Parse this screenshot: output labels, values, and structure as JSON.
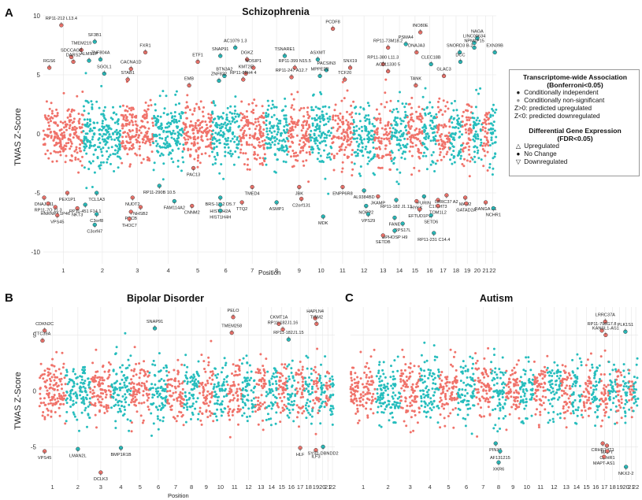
{
  "colors": {
    "coral": "#f0726a",
    "teal": "#26bdbd",
    "grid": "#e6e6e6"
  },
  "panels": [
    {
      "id": "A",
      "letter": "A",
      "title": "Schizophrenia",
      "ylabel": "TWAS Z-Score",
      "xlabel": "Position",
      "yticks": [
        "10",
        "5",
        "0",
        "-5",
        "-10"
      ],
      "chromosomes": [
        "1",
        "2",
        "3",
        "4",
        "5",
        "6",
        "7",
        "8",
        "9",
        "10",
        "11",
        "12",
        "13",
        "14",
        "15",
        "16",
        "17",
        "18",
        "19",
        "20",
        "21",
        "22"
      ],
      "genes": [
        {
          "label": "RP11-212 L13.4",
          "chr": 1,
          "f": 0.45,
          "z": 9.2
        },
        {
          "label": "TMEM219",
          "chr": 1,
          "f": 0.95,
          "z": 7.1
        },
        {
          "label": "SDCCAG8",
          "chr": 1,
          "f": 0.7,
          "z": 6.5
        },
        {
          "label": "DARS2",
          "chr": 1,
          "f": 0.75,
          "z": 6.1
        },
        {
          "label": "ALMS1P",
          "chr": 2,
          "f": 0.15,
          "z": 6.2
        },
        {
          "label": "SF3B1",
          "chr": 2,
          "f": 0.3,
          "z": 7.8
        },
        {
          "label": "ZNF804A",
          "chr": 2,
          "f": 0.45,
          "z": 6.3
        },
        {
          "label": "CACNA1D",
          "chr": 3,
          "f": 0.3,
          "z": 5.5
        },
        {
          "label": "SGOL1",
          "chr": 2,
          "f": 0.55,
          "z": 5.1
        },
        {
          "label": "FXR1",
          "chr": 3,
          "f": 0.75,
          "z": 6.9
        },
        {
          "label": "STAB1",
          "chr": 3,
          "f": 0.2,
          "z": 4.6
        },
        {
          "label": "EMB",
          "chr": 5,
          "f": 0.2,
          "z": 4.1
        },
        {
          "label": "ETF1",
          "chr": 5,
          "f": 0.5,
          "z": 6.1
        },
        {
          "label": "SNAP91",
          "chr": 6,
          "f": 0.3,
          "z": 6.6
        },
        {
          "label": "BTN3A2",
          "chr": 6,
          "f": 0.45,
          "z": 4.9
        },
        {
          "label": "ZNF822",
          "chr": 6,
          "f": 0.25,
          "z": 4.5
        },
        {
          "label": "AC1079 1.3",
          "chr": 6,
          "f": 0.85,
          "z": 7.3
        },
        {
          "label": "DGKZ",
          "chr": 7,
          "f": 0.3,
          "z": 6.3
        },
        {
          "label": "NOSIP1",
          "chr": 7,
          "f": 0.55,
          "z": 5.6
        },
        {
          "label": "KMT2E",
          "chr": 7,
          "f": 0.25,
          "z": 5.1
        },
        {
          "label": "RP11-89H4 4",
          "chr": 7,
          "f": 0.15,
          "z": 4.6
        },
        {
          "label": "TSNARE1",
          "chr": 8,
          "f": 0.85,
          "z": 6.6
        },
        {
          "label": "RP11-399 N15.5",
          "chr": 9,
          "f": 0.3,
          "z": 5.6
        },
        {
          "label": "RP11-247 A12.7",
          "chr": 9,
          "f": 0.15,
          "z": 4.8
        },
        {
          "label": "ASXMT",
          "chr": 10,
          "f": 0.35,
          "z": 6.3
        },
        {
          "label": "PACSIN3",
          "chr": 10,
          "f": 0.75,
          "z": 5.4
        },
        {
          "label": "MPPED2",
          "chr": 10,
          "f": 0.45,
          "z": 4.9
        },
        {
          "label": "PCDF8",
          "chr": 11,
          "f": 0.05,
          "z": 8.9
        },
        {
          "label": "SNX19",
          "chr": 11,
          "f": 0.85,
          "z": 5.6
        },
        {
          "label": "TCF20",
          "chr": 11,
          "f": 0.6,
          "z": 4.6
        },
        {
          "label": "RP11-73M18.2",
          "chr": 13,
          "f": 0.8,
          "z": 7.3
        },
        {
          "label": "RP11-380 L11.3",
          "chr": 13,
          "f": 0.5,
          "z": 5.9
        },
        {
          "label": "AC011330 5",
          "chr": 13,
          "f": 0.8,
          "z": 5.3
        },
        {
          "label": "PSMA4",
          "chr": 14,
          "f": 0.9,
          "z": 7.6
        },
        {
          "label": "INO80E",
          "chr": 15,
          "f": 0.85,
          "z": 8.6
        },
        {
          "label": "DNAJA3",
          "chr": 15,
          "f": 0.6,
          "z": 6.9
        },
        {
          "label": "CLEC18B",
          "chr": 16,
          "f": 0.6,
          "z": 5.9
        },
        {
          "label": "TANK",
          "chr": 15,
          "f": 0.55,
          "z": 4.1
        },
        {
          "label": "GLAC3",
          "chr": 17,
          "f": 0.55,
          "z": 4.9
        },
        {
          "label": "SNORD3 B-2",
          "chr": 18,
          "f": 0.8,
          "z": 6.9
        },
        {
          "label": "DCC",
          "chr": 18,
          "f": 0.85,
          "z": 6.1
        },
        {
          "label": "NAGA",
          "chr": 20,
          "f": 0.5,
          "z": 8.1
        },
        {
          "label": "LINC00634",
          "chr": 20,
          "f": 0.2,
          "z": 7.7
        },
        {
          "label": "NPM1P15",
          "chr": 20,
          "f": 0.2,
          "z": 7.3
        },
        {
          "label": "EXN39B",
          "chr": 22,
          "f": 0.8,
          "z": 6.9
        },
        {
          "label": "RGS6",
          "chr": 1,
          "f": 0.15,
          "z": 5.6
        },
        {
          "label": "DNAJC11",
          "chr": 1,
          "f": 0.02,
          "z": -5.4
        },
        {
          "label": "RP11-7O 11.3",
          "chr": 1,
          "f": 0.12,
          "z": -5.9
        },
        {
          "label": "PEX1P1",
          "chr": 1,
          "f": 0.6,
          "z": -5.0
        },
        {
          "label": "HNRNPA 1P46",
          "chr": 1,
          "f": 0.3,
          "z": -6.2
        },
        {
          "label": "VPS45",
          "chr": 1,
          "f": 0.35,
          "z": -6.9
        },
        {
          "label": "NKT3",
          "chr": 1,
          "f": 0.85,
          "z": -6.3
        },
        {
          "label": "RP11-451 F14.1",
          "chr": 2,
          "f": 0.05,
          "z": -6.0
        },
        {
          "label": "TCL1A3",
          "chr": 2,
          "f": 0.35,
          "z": -5.0
        },
        {
          "label": "C3orf8",
          "chr": 2,
          "f": 0.35,
          "z": -6.8
        },
        {
          "label": "C3orf47",
          "chr": 2,
          "f": 0.3,
          "z": -7.7
        },
        {
          "label": "PCCB",
          "chr": 3,
          "f": 0.3,
          "z": -6.6
        },
        {
          "label": "THOC7",
          "chr": 3,
          "f": 0.25,
          "z": -7.2
        },
        {
          "label": "NUDT2",
          "chr": 3,
          "f": 0.35,
          "z": -5.4
        },
        {
          "label": "NHSB2",
          "chr": 3,
          "f": 0.6,
          "z": -6.2
        },
        {
          "label": "FAM114A2",
          "chr": 4,
          "f": 0.7,
          "z": -5.7
        },
        {
          "label": "CNNM2",
          "chr": 5,
          "f": 0.3,
          "z": -6.1
        },
        {
          "label": "RP11-290B 10.5",
          "chr": 4,
          "f": 0.2,
          "z": -4.4
        },
        {
          "label": "PAC13",
          "chr": 5,
          "f": 0.35,
          "z": -2.9
        },
        {
          "label": "BRS-1112 D5.7",
          "chr": 6,
          "f": 0.3,
          "z": -5.4
        },
        {
          "label": "HIST1H2A",
          "chr": 6,
          "f": 0.3,
          "z": -6.0
        },
        {
          "label": "HIST1H4H",
          "chr": 6,
          "f": 0.3,
          "z": -6.5
        },
        {
          "label": "TTQ2",
          "chr": 7,
          "f": 0.1,
          "z": -5.8
        },
        {
          "label": "TMED4",
          "chr": 7,
          "f": 0.5,
          "z": -4.5
        },
        {
          "label": "ASMP1",
          "chr": 8,
          "f": 0.5,
          "z": -5.8
        },
        {
          "label": "JBK",
          "chr": 9,
          "f": 0.5,
          "z": -4.5
        },
        {
          "label": "C2orf131",
          "chr": 9,
          "f": 0.6,
          "z": -5.5
        },
        {
          "label": "MDK",
          "chr": 10,
          "f": 0.6,
          "z": -7.0
        },
        {
          "label": "ENPP6R8",
          "chr": 11,
          "f": 0.5,
          "z": -4.5
        },
        {
          "label": "AL9384BD",
          "chr": 12,
          "f": 0.5,
          "z": -4.8
        },
        {
          "label": "JKAMP",
          "chr": 13,
          "f": 0.2,
          "z": -5.3
        },
        {
          "label": "RP11-182 J1.13",
          "chr": 14,
          "f": 0.3,
          "z": -5.6
        },
        {
          "label": "NOPP2",
          "chr": 12,
          "f": 0.6,
          "z": -6.1
        },
        {
          "label": "VPS29",
          "chr": 12,
          "f": 0.7,
          "z": -6.8
        },
        {
          "label": "FANE",
          "chr": 14,
          "f": 0.2,
          "z": -7.1
        },
        {
          "label": "RPS17L",
          "chr": 14,
          "f": 0.7,
          "z": -7.6
        },
        {
          "label": "MPHOSP H9",
          "chr": 14,
          "f": 0.2,
          "z": -8.2
        },
        {
          "label": "SETDB",
          "chr": 13,
          "f": 0.5,
          "z": -8.6
        },
        {
          "label": "FURIN",
          "chr": 16,
          "f": 0.1,
          "z": -5.3
        },
        {
          "label": "HYKK",
          "chr": 15,
          "f": 0.6,
          "z": -5.7
        },
        {
          "label": "EFTUD1P1",
          "chr": 15,
          "f": 0.8,
          "z": -6.4
        },
        {
          "label": "SETD6",
          "chr": 16,
          "f": 0.6,
          "z": -6.9
        },
        {
          "label": "RP11-231 C14.4",
          "chr": 16,
          "f": 0.8,
          "z": -8.4
        },
        {
          "label": "C17orf73",
          "chr": 17,
          "f": 0.1,
          "z": -5.6
        },
        {
          "label": "TOM1L2",
          "chr": 17,
          "f": 0.1,
          "z": -6.1
        },
        {
          "label": "LRRC37 A2",
          "chr": 17,
          "f": 0.75,
          "z": -5.2
        },
        {
          "label": "MAU2",
          "chr": 19,
          "f": 0.3,
          "z": -5.4
        },
        {
          "label": "GATAD2A",
          "chr": 19,
          "f": 0.4,
          "z": -5.9
        },
        {
          "label": "RANGA P1",
          "chr": 21,
          "f": 0.5,
          "z": -5.8
        },
        {
          "label": "NCHR1",
          "chr": 22,
          "f": 0.6,
          "z": -6.3
        }
      ]
    },
    {
      "id": "B",
      "letter": "B",
      "title": "Bipolar Disorder",
      "ylabel": "TWAS Z-Score",
      "xlabel": "Position",
      "yticks": [
        "5",
        "0",
        "-5"
      ],
      "chromosomes": [
        "1",
        "2",
        "3",
        "4",
        "5",
        "6",
        "7",
        "8",
        "9",
        "10",
        "11",
        "12",
        "13",
        "14",
        "15",
        "16",
        "17",
        "18",
        "19",
        "20",
        "21",
        "22"
      ],
      "genes": [
        {
          "label": "CDKN2C",
          "chr": 1,
          "f": 0.2,
          "z": 5.4
        },
        {
          "label": "TTC39A",
          "chr": 1,
          "f": 0.12,
          "z": 4.5
        },
        {
          "label": "SNAP91",
          "chr": 6,
          "f": 0.3,
          "z": 5.6
        },
        {
          "label": "PELO",
          "chr": 11,
          "f": 0.4,
          "z": 6.6
        },
        {
          "label": "TMEM258",
          "chr": 11,
          "f": 0.3,
          "z": 5.2
        },
        {
          "label": "CKMT1A",
          "chr": 15,
          "f": 0.2,
          "z": 6.0
        },
        {
          "label": "RP11-182J1.16",
          "chr": 15,
          "f": 0.6,
          "z": 5.5
        },
        {
          "label": "RP11-182J1.15",
          "chr": 16,
          "f": 0.2,
          "z": 4.6
        },
        {
          "label": "HAPLN4",
          "chr": 19,
          "f": 0.4,
          "z": 6.5
        },
        {
          "label": "TISM2",
          "chr": 19,
          "f": 0.6,
          "z": 6.0
        },
        {
          "label": "VPS45",
          "chr": 1,
          "f": 0.2,
          "z": -5.4
        },
        {
          "label": "LMAN2L",
          "chr": 2,
          "f": 0.5,
          "z": -5.2
        },
        {
          "label": "BMP1R1B",
          "chr": 4,
          "f": 0.5,
          "z": -5.1
        },
        {
          "label": "DCLK3",
          "chr": 3,
          "f": 0.5,
          "z": -7.3
        },
        {
          "label": "HLF",
          "chr": 17,
          "f": 0.5,
          "z": -5.1
        },
        {
          "label": "ILF3",
          "chr": 19,
          "f": 0.5,
          "z": -5.3
        },
        {
          "label": "SYS1-DBNDD2",
          "chr": 20,
          "f": 0.6,
          "z": -5.0
        }
      ]
    },
    {
      "id": "C",
      "letter": "C",
      "title": "Autism",
      "ylabel": "",
      "xlabel": "",
      "yticks": [],
      "chromosomes": [
        "1",
        "2",
        "3",
        "4",
        "5",
        "6",
        "7",
        "8",
        "9",
        "10",
        "11",
        "12",
        "13",
        "14",
        "15",
        "16",
        "17",
        "18",
        "19",
        "20",
        "21",
        "22"
      ],
      "genes": [
        {
          "label": "LRRC37A",
          "chr": 17,
          "f": 0.6,
          "z": 6.2
        },
        {
          "label": "RP11-798G7.8",
          "chr": 17,
          "f": 0.2,
          "z": 5.4
        },
        {
          "label": "KANSL1-AS1",
          "chr": 17,
          "f": 0.65,
          "z": 5.0
        },
        {
          "label": "PLK1S1",
          "chr": 20,
          "f": 0.4,
          "z": 5.3
        },
        {
          "label": "PINX1",
          "chr": 8,
          "f": 0.3,
          "z": -4.7
        },
        {
          "label": "AF131215",
          "chr": 8,
          "f": 0.6,
          "z": -5.4
        },
        {
          "label": "XKR6",
          "chr": 8,
          "f": 0.5,
          "z": -6.4
        },
        {
          "label": "CRHR1-IT1",
          "chr": 17,
          "f": 0.3,
          "z": -4.7
        },
        {
          "label": "MAPT",
          "chr": 17,
          "f": 0.8,
          "z": -4.9
        },
        {
          "label": "CRHR1",
          "chr": 17,
          "f": 0.85,
          "z": -5.4
        },
        {
          "label": "MAPT-AS1",
          "chr": 17,
          "f": 0.45,
          "z": -5.9
        },
        {
          "label": "NKX2-2",
          "chr": 20,
          "f": 0.5,
          "z": -6.8
        }
      ]
    }
  ],
  "legend": {
    "title1": "Transcriptome-wide Association",
    "title2": "(Bonferroni<0.05)",
    "items1": [
      "Conditionally independent",
      "Conditionally non-significant",
      "Z>0: predicted upregulated",
      "Z<0: predicted downregulated"
    ],
    "title3": "Differential Gene Expression",
    "title4": "(FDR<0.05)",
    "items2": [
      "Upregulated",
      "No Change",
      "Downregulated"
    ]
  }
}
